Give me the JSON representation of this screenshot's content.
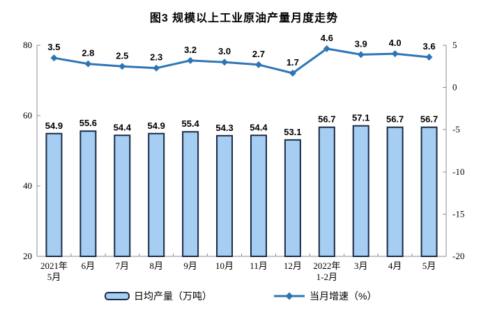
{
  "chart_data": {
    "type": "bar",
    "title": "图3 规模以上工业原油产量月度走势",
    "categories": [
      [
        "2021年",
        "5月"
      ],
      [
        "6月"
      ],
      [
        "7月"
      ],
      [
        "8月"
      ],
      [
        "9月"
      ],
      [
        "10月"
      ],
      [
        "11月"
      ],
      [
        "12月"
      ],
      [
        "2022年",
        "1-2月"
      ],
      [
        "3月"
      ],
      [
        "4月"
      ],
      [
        "5月"
      ]
    ],
    "series": [
      {
        "name": "日均产量（万吨）",
        "chart": "bar",
        "axis": "left",
        "values": [
          54.9,
          55.6,
          54.4,
          54.9,
          55.4,
          54.3,
          54.4,
          53.1,
          56.7,
          57.1,
          56.7,
          56.7
        ]
      },
      {
        "name": "当月增速（%）",
        "chart": "line",
        "axis": "right",
        "values": [
          3.5,
          2.8,
          2.5,
          2.3,
          3.2,
          3.0,
          2.7,
          1.7,
          4.6,
          3.9,
          4.0,
          3.6
        ]
      }
    ],
    "left_axis": {
      "min": 20,
      "max": 80,
      "ticks": [
        80,
        60,
        40,
        20
      ]
    },
    "right_axis": {
      "min": -20,
      "max": 5,
      "ticks": [
        5,
        0,
        -5,
        -10,
        -15,
        -20
      ]
    },
    "legend_position": "bottom",
    "grid": false,
    "data_labels": true
  },
  "legend": {
    "bar_label": "日均产量（万吨）",
    "line_label": "当月增速（%）"
  },
  "colors": {
    "bar_fill": "#A6CDF2",
    "bar_stroke": "#1A2A45",
    "line": "#2E75B6",
    "axis": "#8C8C8C",
    "text": "#000000"
  }
}
